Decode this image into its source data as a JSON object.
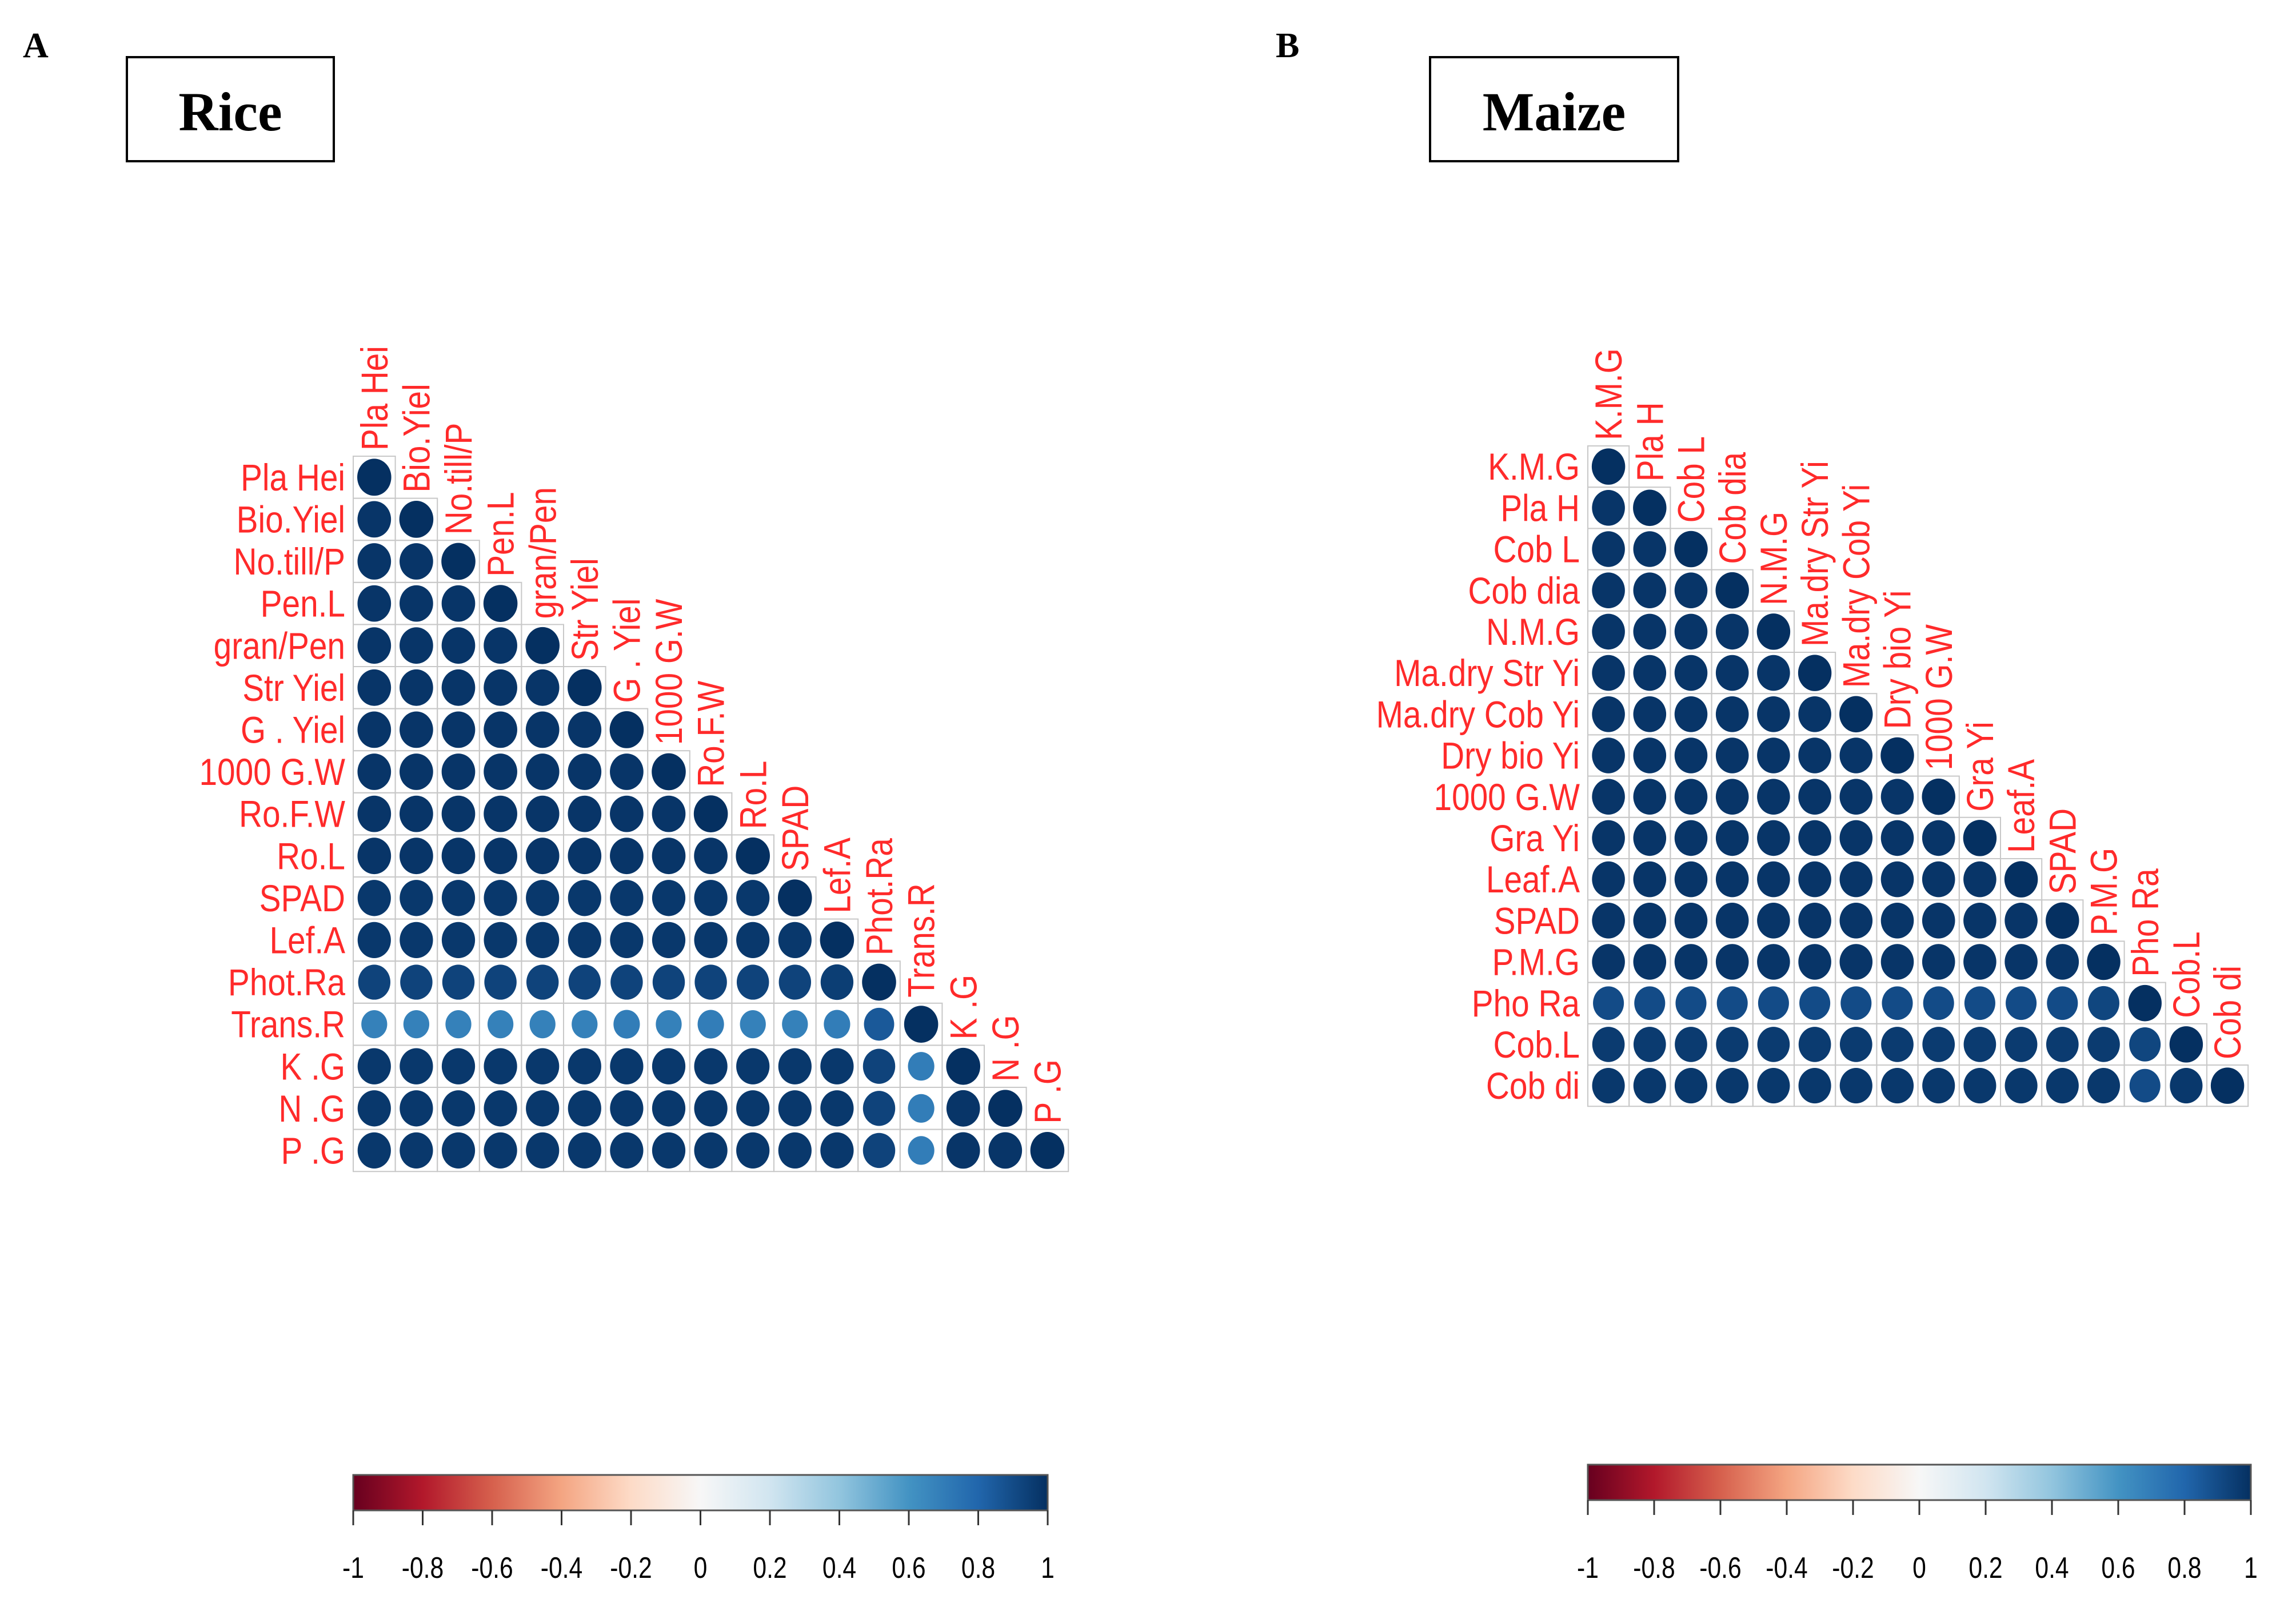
{
  "colors": {
    "label": "#ff2a2a",
    "scale": [
      "#67001f",
      "#b2182b",
      "#d6604d",
      "#f4a582",
      "#fddbc7",
      "#f7f7f7",
      "#d1e5f0",
      "#92c5de",
      "#4393c3",
      "#2166ac",
      "#053061"
    ]
  },
  "chart_data": [
    {
      "type": "heatmap",
      "panel": "A",
      "title": "Rice",
      "variables": [
        "Pla Hei",
        "Bio.Yiel",
        "No.till/P",
        "Pen.L",
        "gran/Pen",
        "Str Yiel",
        "G . Yiel",
        "1000 G.W",
        "Ro.F.W",
        "Ro.L",
        "SPAD",
        "Lef.A",
        "Phot.Ra",
        "Trans.R",
        "K.G",
        "N.G",
        "P.G"
      ],
      "row_labels": [
        "Pla Hei",
        "Bio.Yiel",
        "No.till/P",
        "Pen.L",
        "gran/Pen",
        "Str Yiel",
        "G . Yiel",
        "1000 G.W",
        "Ro.F.W",
        "Ro.L",
        "SPAD",
        "Lef.A",
        "Phot.Ra",
        "Trans.R",
        "K .G",
        "N .G",
        "P .G"
      ],
      "col_labels": [
        "Pla Hei",
        "Bio.Yiel",
        "No.till/P",
        "Pen.L",
        "gran/Pen",
        "Str Yiel",
        "G . Yiel",
        "1000 G.W",
        "Ro.F.W",
        "Ro.L",
        "SPAD",
        "Lef.A",
        "Phot.Ra",
        "Trans.R",
        "K .G",
        "N .G",
        "P .G"
      ],
      "matrix": [
        [
          1
        ],
        [
          0.98,
          1
        ],
        [
          0.98,
          0.98,
          1
        ],
        [
          0.98,
          0.98,
          0.98,
          1
        ],
        [
          0.98,
          0.98,
          0.98,
          0.98,
          1
        ],
        [
          0.98,
          0.98,
          0.98,
          0.98,
          0.98,
          1
        ],
        [
          0.98,
          0.98,
          0.98,
          0.98,
          0.98,
          0.98,
          1
        ],
        [
          0.98,
          0.98,
          0.98,
          0.98,
          0.98,
          0.98,
          0.98,
          1
        ],
        [
          0.98,
          0.98,
          0.98,
          0.98,
          0.98,
          0.98,
          0.98,
          0.98,
          1
        ],
        [
          0.98,
          0.98,
          0.98,
          0.98,
          0.98,
          0.98,
          0.98,
          0.98,
          0.98,
          1
        ],
        [
          0.97,
          0.97,
          0.97,
          0.97,
          0.97,
          0.97,
          0.97,
          0.97,
          0.97,
          0.97,
          1
        ],
        [
          0.97,
          0.97,
          0.97,
          0.97,
          0.97,
          0.97,
          0.97,
          0.97,
          0.97,
          0.97,
          0.97,
          1
        ],
        [
          0.93,
          0.93,
          0.93,
          0.93,
          0.93,
          0.93,
          0.93,
          0.93,
          0.93,
          0.93,
          0.93,
          0.95,
          1
        ],
        [
          0.68,
          0.68,
          0.68,
          0.68,
          0.68,
          0.68,
          0.7,
          0.68,
          0.7,
          0.68,
          0.68,
          0.7,
          0.85,
          1
        ],
        [
          0.97,
          0.97,
          0.97,
          0.97,
          0.97,
          0.97,
          0.97,
          0.97,
          0.97,
          0.97,
          0.97,
          0.97,
          0.93,
          0.7,
          1
        ],
        [
          0.97,
          0.97,
          0.97,
          0.97,
          0.97,
          0.97,
          0.97,
          0.97,
          0.97,
          0.97,
          0.97,
          0.97,
          0.93,
          0.7,
          0.98,
          1
        ],
        [
          0.97,
          0.97,
          0.97,
          0.97,
          0.97,
          0.97,
          0.97,
          0.97,
          0.97,
          0.97,
          0.97,
          0.97,
          0.93,
          0.7,
          0.98,
          0.98,
          1
        ]
      ],
      "color_range": [
        -1,
        1
      ],
      "colorbar_ticks": [
        "-1",
        "-0.8",
        "-0.6",
        "-0.4",
        "-0.2",
        "0",
        "0.2",
        "0.4",
        "0.6",
        "0.8",
        "1"
      ],
      "colorbar_tick_values": [
        -1,
        -0.8,
        -0.6,
        -0.4,
        -0.2,
        0,
        0.2,
        0.4,
        0.6,
        0.8,
        1
      ],
      "shape": "lower-triangle"
    },
    {
      "type": "heatmap",
      "panel": "B",
      "title": "Maize",
      "variables": [
        "K.M.G",
        "Pla H",
        "Cob L",
        "Cob dia",
        "N.M.G",
        "Ma.dry Str Yi",
        "Ma.dry Cob Yi",
        "Dry bio Yi",
        "1000 G.W",
        "Gra Yi",
        "Leaf.A",
        "SPAD",
        "P.M.G",
        "Pho Ra",
        "Cob.L",
        "Cob di"
      ],
      "row_labels": [
        "K.M.G",
        "Pla H",
        "Cob L",
        "Cob dia",
        "N.M.G",
        "Ma.dry Str Yi",
        "Ma.dry Cob Yi",
        "Dry bio Yi",
        "1000 G.W",
        "Gra Yi",
        "Leaf.A",
        "SPAD",
        "P.M.G",
        "Pho Ra",
        "Cob.L",
        "Cob di"
      ],
      "col_labels": [
        "K.M.G",
        "Pla H",
        "Cob L",
        "Cob dia",
        "N.M.G",
        "Ma.dry Str Yi",
        "Ma.dry Cob Yi",
        "Dry bio Yi",
        "1000 G.W",
        "Gra Yi",
        "Leaf.A",
        "SPAD",
        "P.M.G",
        "Pho Ra",
        "Cob.L",
        "Cob di"
      ],
      "matrix": [
        [
          1
        ],
        [
          0.98,
          1
        ],
        [
          0.98,
          0.98,
          1
        ],
        [
          0.98,
          0.98,
          0.98,
          1
        ],
        [
          0.98,
          0.98,
          0.98,
          0.98,
          1
        ],
        [
          0.98,
          0.98,
          0.98,
          0.98,
          0.98,
          1
        ],
        [
          0.98,
          0.98,
          0.98,
          0.98,
          0.98,
          0.98,
          1
        ],
        [
          0.98,
          0.98,
          0.98,
          0.98,
          0.98,
          0.98,
          0.98,
          1
        ],
        [
          0.98,
          0.98,
          0.98,
          0.98,
          0.98,
          0.98,
          0.98,
          0.98,
          1
        ],
        [
          0.98,
          0.98,
          0.98,
          0.98,
          0.98,
          0.98,
          0.98,
          0.98,
          0.98,
          1
        ],
        [
          0.98,
          0.98,
          0.98,
          0.98,
          0.98,
          0.98,
          0.98,
          0.98,
          0.98,
          0.98,
          1
        ],
        [
          0.98,
          0.98,
          0.98,
          0.98,
          0.98,
          0.98,
          0.98,
          0.98,
          0.98,
          0.98,
          0.98,
          1
        ],
        [
          0.98,
          0.98,
          0.98,
          0.98,
          0.98,
          0.98,
          0.98,
          0.98,
          0.98,
          0.98,
          0.98,
          0.98,
          1
        ],
        [
          0.9,
          0.9,
          0.9,
          0.9,
          0.9,
          0.9,
          0.9,
          0.9,
          0.9,
          0.9,
          0.9,
          0.9,
          0.92,
          1
        ],
        [
          0.96,
          0.96,
          0.96,
          0.96,
          0.96,
          0.96,
          0.96,
          0.96,
          0.96,
          0.96,
          0.96,
          0.96,
          0.96,
          0.92,
          1
        ],
        [
          0.97,
          0.97,
          0.97,
          0.97,
          0.97,
          0.97,
          0.97,
          0.97,
          0.97,
          0.97,
          0.97,
          0.97,
          0.97,
          0.9,
          0.97,
          1
        ]
      ],
      "color_range": [
        -1,
        1
      ],
      "colorbar_ticks": [
        "-1",
        "-0.8",
        "-0.6",
        "-0.4",
        "-0.2",
        "0",
        "0.2",
        "0.4",
        "0.6",
        "0.8",
        "1"
      ],
      "colorbar_tick_values": [
        -1,
        -0.8,
        -0.6,
        -0.4,
        -0.2,
        0,
        0.2,
        0.4,
        0.6,
        0.8,
        1
      ],
      "shape": "lower-triangle"
    }
  ]
}
